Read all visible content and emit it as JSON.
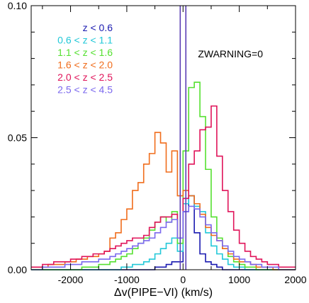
{
  "chart_data": {
    "type": "step-histogram",
    "xlabel": "Δv(PIPE−VI) (km/s)",
    "ylabel": "",
    "xlim": [
      -2700,
      2000
    ],
    "ylim": [
      0,
      0.1
    ],
    "x_ticks": [
      -2000,
      -1000,
      0,
      1000,
      2000
    ],
    "y_ticks": [
      0.0,
      0.05,
      0.1
    ],
    "y_tick_labels": [
      "0.00",
      "0.05",
      "0.10"
    ],
    "annotation": "ZWARNING=0",
    "legend_position": "top-left",
    "grid": false,
    "vertical_lines": [
      -50,
      50
    ],
    "vertical_line_color": "#5b3fb5",
    "bin_width": 100,
    "bin_start": -2700,
    "series": [
      {
        "name": "z < 0.6",
        "color": "#1a1ab0",
        "values": [
          0.0,
          0.0,
          0.0,
          0.0,
          0.0,
          0.0,
          0.0,
          0.0,
          0.0,
          0.0,
          0.0,
          0.0,
          0.0,
          0.0,
          0.0,
          0.0,
          0.0,
          0.0,
          0.0,
          0.0,
          0.0,
          0.0,
          0.001,
          0.001,
          0.002,
          0.003,
          0.003,
          0.022,
          0.028,
          0.014,
          0.006,
          0.003,
          0.002,
          0.001,
          0.0,
          0.0,
          0.0,
          0.0,
          0.0,
          0.0,
          0.0,
          0.0,
          0.0,
          0.0,
          0.0,
          0.0,
          0.0
        ]
      },
      {
        "name": "0.6 < z < 1.1",
        "color": "#22c8d8",
        "values": [
          0.0,
          0.0,
          0.0,
          0.0,
          0.0,
          0.0,
          0.0,
          0.0,
          0.0,
          0.0,
          0.0,
          0.0,
          0.0,
          0.0,
          0.0,
          0.0,
          0.001,
          0.001,
          0.002,
          0.002,
          0.003,
          0.004,
          0.006,
          0.008,
          0.01,
          0.012,
          0.007,
          0.025,
          0.028,
          0.024,
          0.022,
          0.014,
          0.009,
          0.006,
          0.004,
          0.002,
          0.001,
          0.001,
          0.0,
          0.0,
          0.0,
          0.0,
          0.0,
          0.0,
          0.0,
          0.0,
          0.0
        ]
      },
      {
        "name": "1.1 < z < 1.6",
        "color": "#55e030",
        "values": [
          0.0,
          0.0,
          0.0,
          0.0,
          0.0,
          0.0,
          0.0,
          0.0,
          0.0,
          0.001,
          0.001,
          0.001,
          0.002,
          0.002,
          0.003,
          0.004,
          0.005,
          0.006,
          0.008,
          0.01,
          0.012,
          0.015,
          0.018,
          0.02,
          0.018,
          0.022,
          0.01,
          0.045,
          0.069,
          0.071,
          0.058,
          0.038,
          0.02,
          0.012,
          0.008,
          0.005,
          0.003,
          0.002,
          0.001,
          0.001,
          0.0,
          0.0,
          0.0,
          0.0,
          0.0,
          0.0,
          0.0
        ]
      },
      {
        "name": "1.6 < z < 2.0",
        "color": "#f06d1c",
        "values": [
          0.001,
          0.001,
          0.001,
          0.002,
          0.002,
          0.002,
          0.003,
          0.003,
          0.004,
          0.004,
          0.005,
          0.005,
          0.006,
          0.007,
          0.012,
          0.014,
          0.019,
          0.023,
          0.03,
          0.033,
          0.04,
          0.044,
          0.052,
          0.048,
          0.037,
          0.045,
          0.028,
          0.03,
          0.028,
          0.025,
          0.021,
          0.016,
          0.013,
          0.011,
          0.008,
          0.006,
          0.004,
          0.003,
          0.003,
          0.002,
          0.001,
          0.001,
          0.001,
          0.0,
          0.0,
          0.0,
          0.0
        ]
      },
      {
        "name": "2.0 < z < 2.5",
        "color": "#e0145a",
        "values": [
          0.001,
          0.001,
          0.002,
          0.002,
          0.003,
          0.003,
          0.003,
          0.004,
          0.004,
          0.005,
          0.005,
          0.006,
          0.006,
          0.007,
          0.008,
          0.009,
          0.01,
          0.011,
          0.012,
          0.012,
          0.013,
          0.016,
          0.018,
          0.02,
          0.02,
          0.021,
          0.012,
          0.027,
          0.04,
          0.045,
          0.053,
          0.054,
          0.062,
          0.043,
          0.03,
          0.022,
          0.015,
          0.01,
          0.007,
          0.005,
          0.004,
          0.003,
          0.002,
          0.002,
          0.001,
          0.001,
          0.001
        ]
      },
      {
        "name": "2.5 < z < 4.5",
        "color": "#7b68ee",
        "values": [
          0.0,
          0.0,
          0.001,
          0.001,
          0.001,
          0.001,
          0.002,
          0.002,
          0.002,
          0.003,
          0.003,
          0.003,
          0.004,
          0.004,
          0.005,
          0.006,
          0.007,
          0.008,
          0.009,
          0.01,
          0.011,
          0.012,
          0.014,
          0.016,
          0.018,
          0.019,
          0.012,
          0.022,
          0.024,
          0.023,
          0.02,
          0.017,
          0.014,
          0.011,
          0.009,
          0.007,
          0.005,
          0.004,
          0.003,
          0.002,
          0.002,
          0.001,
          0.001,
          0.001,
          0.0,
          0.0,
          0.0
        ]
      }
    ]
  }
}
